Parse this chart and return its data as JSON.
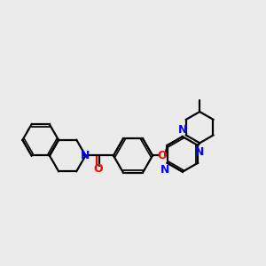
{
  "bg_color": "#ebebeb",
  "bond_color": "#000000",
  "N_color": "#0000ff",
  "O_color": "#ff0000",
  "line_width": 1.6,
  "figsize": [
    3.0,
    3.0
  ],
  "dpi": 100,
  "xlim": [
    -3.5,
    3.5
  ],
  "ylim": [
    -2.2,
    2.8
  ]
}
